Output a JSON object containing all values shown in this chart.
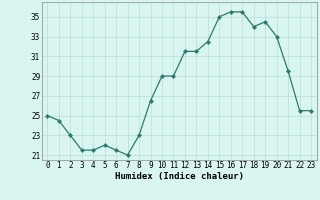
{
  "x": [
    0,
    1,
    2,
    3,
    4,
    5,
    6,
    7,
    8,
    9,
    10,
    11,
    12,
    13,
    14,
    15,
    16,
    17,
    18,
    19,
    20,
    21,
    22,
    23
  ],
  "y": [
    25.0,
    24.5,
    23.0,
    21.5,
    21.5,
    22.0,
    21.5,
    21.0,
    23.0,
    26.5,
    29.0,
    29.0,
    31.5,
    31.5,
    32.5,
    35.0,
    35.5,
    35.5,
    34.0,
    34.5,
    33.0,
    29.5,
    25.5,
    25.5
  ],
  "line_color": "#2d7a6e",
  "marker": "D",
  "marker_size": 2,
  "bg_color": "#d8f5f0",
  "grid_color": "#b8ddd8",
  "xlabel": "Humidex (Indice chaleur)",
  "xlim": [
    -0.5,
    23.5
  ],
  "ylim": [
    20.5,
    36.5
  ],
  "yticks": [
    21,
    23,
    25,
    27,
    29,
    31,
    33,
    35
  ],
  "xticks": [
    0,
    1,
    2,
    3,
    4,
    5,
    6,
    7,
    8,
    9,
    10,
    11,
    12,
    13,
    14,
    15,
    16,
    17,
    18,
    19,
    20,
    21,
    22,
    23
  ],
  "tick_fontsize": 5.5,
  "label_fontsize": 6.5
}
